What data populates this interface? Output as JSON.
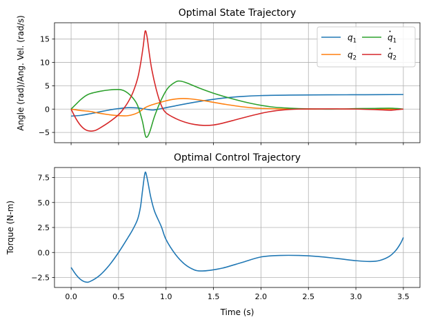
{
  "chart_data": [
    {
      "type": "line",
      "title": "Optimal State Trajectory",
      "ylabel": "Angle (rad)/Ang. Vel. (rad/s)",
      "xlabel": "",
      "xlim": [
        -0.175,
        3.675
      ],
      "ylim": [
        -7.2,
        18.5
      ],
      "xticks": [
        0.0,
        0.5,
        1.0,
        1.5,
        2.0,
        2.5,
        3.0,
        3.5
      ],
      "yticks": [
        -5,
        0,
        5,
        10,
        15
      ],
      "ytick_labels": [
        "−5",
        "0",
        "5",
        "10",
        "15"
      ],
      "show_xtick_labels": false,
      "grid": true,
      "legend": {
        "placement": "top-right",
        "columns": 2
      },
      "series": [
        {
          "name": "q1",
          "color": "#1f77b4",
          "points": [
            [
              0.0,
              -1.5
            ],
            [
              0.1,
              -1.35
            ],
            [
              0.2,
              -1.0
            ],
            [
              0.3,
              -0.6
            ],
            [
              0.4,
              -0.2
            ],
            [
              0.5,
              0.1
            ],
            [
              0.6,
              0.3
            ],
            [
              0.7,
              0.25
            ],
            [
              0.78,
              0.0
            ],
            [
              0.85,
              -0.2
            ],
            [
              0.9,
              -0.1
            ],
            [
              1.0,
              0.3
            ],
            [
              1.2,
              1.1
            ],
            [
              1.4,
              1.8
            ],
            [
              1.6,
              2.35
            ],
            [
              1.8,
              2.7
            ],
            [
              2.0,
              2.9
            ],
            [
              2.3,
              3.0
            ],
            [
              2.7,
              3.05
            ],
            [
              3.1,
              3.08
            ],
            [
              3.5,
              3.12
            ]
          ]
        },
        {
          "name": "q2",
          "color": "#ff7f0e",
          "points": [
            [
              0.0,
              0.0
            ],
            [
              0.1,
              -0.3
            ],
            [
              0.2,
              -0.5
            ],
            [
              0.3,
              -0.9
            ],
            [
              0.4,
              -1.2
            ],
            [
              0.5,
              -1.4
            ],
            [
              0.6,
              -1.4
            ],
            [
              0.7,
              -0.8
            ],
            [
              0.78,
              0.3
            ],
            [
              0.85,
              0.9
            ],
            [
              0.95,
              1.5
            ],
            [
              1.05,
              2.0
            ],
            [
              1.15,
              2.25
            ],
            [
              1.25,
              2.2
            ],
            [
              1.4,
              1.8
            ],
            [
              1.6,
              1.1
            ],
            [
              1.8,
              0.5
            ],
            [
              2.0,
              0.15
            ],
            [
              2.3,
              0.0
            ],
            [
              2.7,
              0.0
            ],
            [
              3.1,
              0.0
            ],
            [
              3.5,
              0.0
            ]
          ]
        },
        {
          "name": "q̇1",
          "color": "#2ca02c",
          "points": [
            [
              0.0,
              0.0
            ],
            [
              0.05,
              1.0
            ],
            [
              0.1,
              2.0
            ],
            [
              0.15,
              2.8
            ],
            [
              0.2,
              3.3
            ],
            [
              0.3,
              3.8
            ],
            [
              0.4,
              4.1
            ],
            [
              0.5,
              4.2
            ],
            [
              0.55,
              4.0
            ],
            [
              0.6,
              3.4
            ],
            [
              0.65,
              2.4
            ],
            [
              0.7,
              0.8
            ],
            [
              0.75,
              -2.5
            ],
            [
              0.78,
              -5.5
            ],
            [
              0.8,
              -6.0
            ],
            [
              0.83,
              -4.8
            ],
            [
              0.88,
              -1.5
            ],
            [
              0.95,
              2.0
            ],
            [
              1.02,
              4.5
            ],
            [
              1.1,
              5.8
            ],
            [
              1.15,
              6.0
            ],
            [
              1.22,
              5.6
            ],
            [
              1.35,
              4.5
            ],
            [
              1.5,
              3.4
            ],
            [
              1.7,
              2.2
            ],
            [
              1.9,
              1.2
            ],
            [
              2.1,
              0.5
            ],
            [
              2.3,
              0.2
            ],
            [
              2.5,
              0.05
            ],
            [
              2.8,
              0.0
            ],
            [
              3.0,
              0.1
            ],
            [
              3.2,
              0.15
            ],
            [
              3.35,
              0.2
            ],
            [
              3.45,
              0.1
            ],
            [
              3.5,
              0.0
            ]
          ]
        },
        {
          "name": "q̇2",
          "color": "#d62728",
          "points": [
            [
              0.0,
              0.0
            ],
            [
              0.05,
              -2.0
            ],
            [
              0.1,
              -3.5
            ],
            [
              0.15,
              -4.4
            ],
            [
              0.2,
              -4.7
            ],
            [
              0.25,
              -4.6
            ],
            [
              0.3,
              -4.1
            ],
            [
              0.4,
              -2.8
            ],
            [
              0.5,
              -1.2
            ],
            [
              0.55,
              0.0
            ],
            [
              0.6,
              1.5
            ],
            [
              0.65,
              3.5
            ],
            [
              0.7,
              6.5
            ],
            [
              0.73,
              9.5
            ],
            [
              0.76,
              13.5
            ],
            [
              0.78,
              16.7
            ],
            [
              0.8,
              15.5
            ],
            [
              0.82,
              12.5
            ],
            [
              0.85,
              8.5
            ],
            [
              0.9,
              4.0
            ],
            [
              0.95,
              0.8
            ],
            [
              1.0,
              -0.8
            ],
            [
              1.1,
              -2.0
            ],
            [
              1.2,
              -2.8
            ],
            [
              1.3,
              -3.3
            ],
            [
              1.4,
              -3.5
            ],
            [
              1.5,
              -3.4
            ],
            [
              1.6,
              -3.0
            ],
            [
              1.75,
              -2.2
            ],
            [
              1.9,
              -1.4
            ],
            [
              2.05,
              -0.7
            ],
            [
              2.2,
              -0.25
            ],
            [
              2.4,
              0.0
            ],
            [
              2.7,
              0.05
            ],
            [
              3.0,
              0.0
            ],
            [
              3.25,
              -0.15
            ],
            [
              3.35,
              -0.25
            ],
            [
              3.42,
              -0.15
            ],
            [
              3.5,
              0.0
            ]
          ]
        }
      ]
    },
    {
      "type": "line",
      "title": "Optimal Control Trajectory",
      "ylabel": "Torque (N-m)",
      "xlabel": "Time (s)",
      "xlim": [
        -0.175,
        3.675
      ],
      "ylim": [
        -3.5,
        8.5
      ],
      "xticks": [
        0.0,
        0.5,
        1.0,
        1.5,
        2.0,
        2.5,
        3.0,
        3.5
      ],
      "xtick_labels": [
        "0.0",
        "0.5",
        "1.0",
        "1.5",
        "2.0",
        "2.5",
        "3.0",
        "3.5"
      ],
      "yticks": [
        -2.5,
        0.0,
        2.5,
        5.0,
        7.5
      ],
      "ytick_labels": [
        "−2.5",
        "0.0",
        "2.5",
        "5.0",
        "7.5"
      ],
      "show_xtick_labels": true,
      "grid": true,
      "series": [
        {
          "name": "",
          "color": "#1f77b4",
          "points": [
            [
              0.0,
              -1.5
            ],
            [
              0.05,
              -2.2
            ],
            [
              0.1,
              -2.7
            ],
            [
              0.15,
              -2.95
            ],
            [
              0.2,
              -2.9
            ],
            [
              0.3,
              -2.3
            ],
            [
              0.4,
              -1.3
            ],
            [
              0.5,
              0.0
            ],
            [
              0.6,
              1.5
            ],
            [
              0.65,
              2.3
            ],
            [
              0.7,
              3.3
            ],
            [
              0.73,
              4.5
            ],
            [
              0.75,
              6.0
            ],
            [
              0.77,
              7.5
            ],
            [
              0.78,
              8.0
            ],
            [
              0.79,
              7.9
            ],
            [
              0.81,
              7.0
            ],
            [
              0.84,
              5.5
            ],
            [
              0.88,
              4.1
            ],
            [
              0.95,
              2.6
            ],
            [
              1.0,
              1.3
            ],
            [
              1.1,
              -0.2
            ],
            [
              1.2,
              -1.2
            ],
            [
              1.3,
              -1.75
            ],
            [
              1.37,
              -1.85
            ],
            [
              1.45,
              -1.8
            ],
            [
              1.6,
              -1.55
            ],
            [
              1.8,
              -1.0
            ],
            [
              2.0,
              -0.45
            ],
            [
              2.2,
              -0.3
            ],
            [
              2.4,
              -0.3
            ],
            [
              2.6,
              -0.4
            ],
            [
              2.8,
              -0.6
            ],
            [
              3.0,
              -0.82
            ],
            [
              3.15,
              -0.9
            ],
            [
              3.25,
              -0.8
            ],
            [
              3.35,
              -0.4
            ],
            [
              3.42,
              0.2
            ],
            [
              3.47,
              0.9
            ],
            [
              3.5,
              1.5
            ]
          ]
        }
      ]
    }
  ]
}
